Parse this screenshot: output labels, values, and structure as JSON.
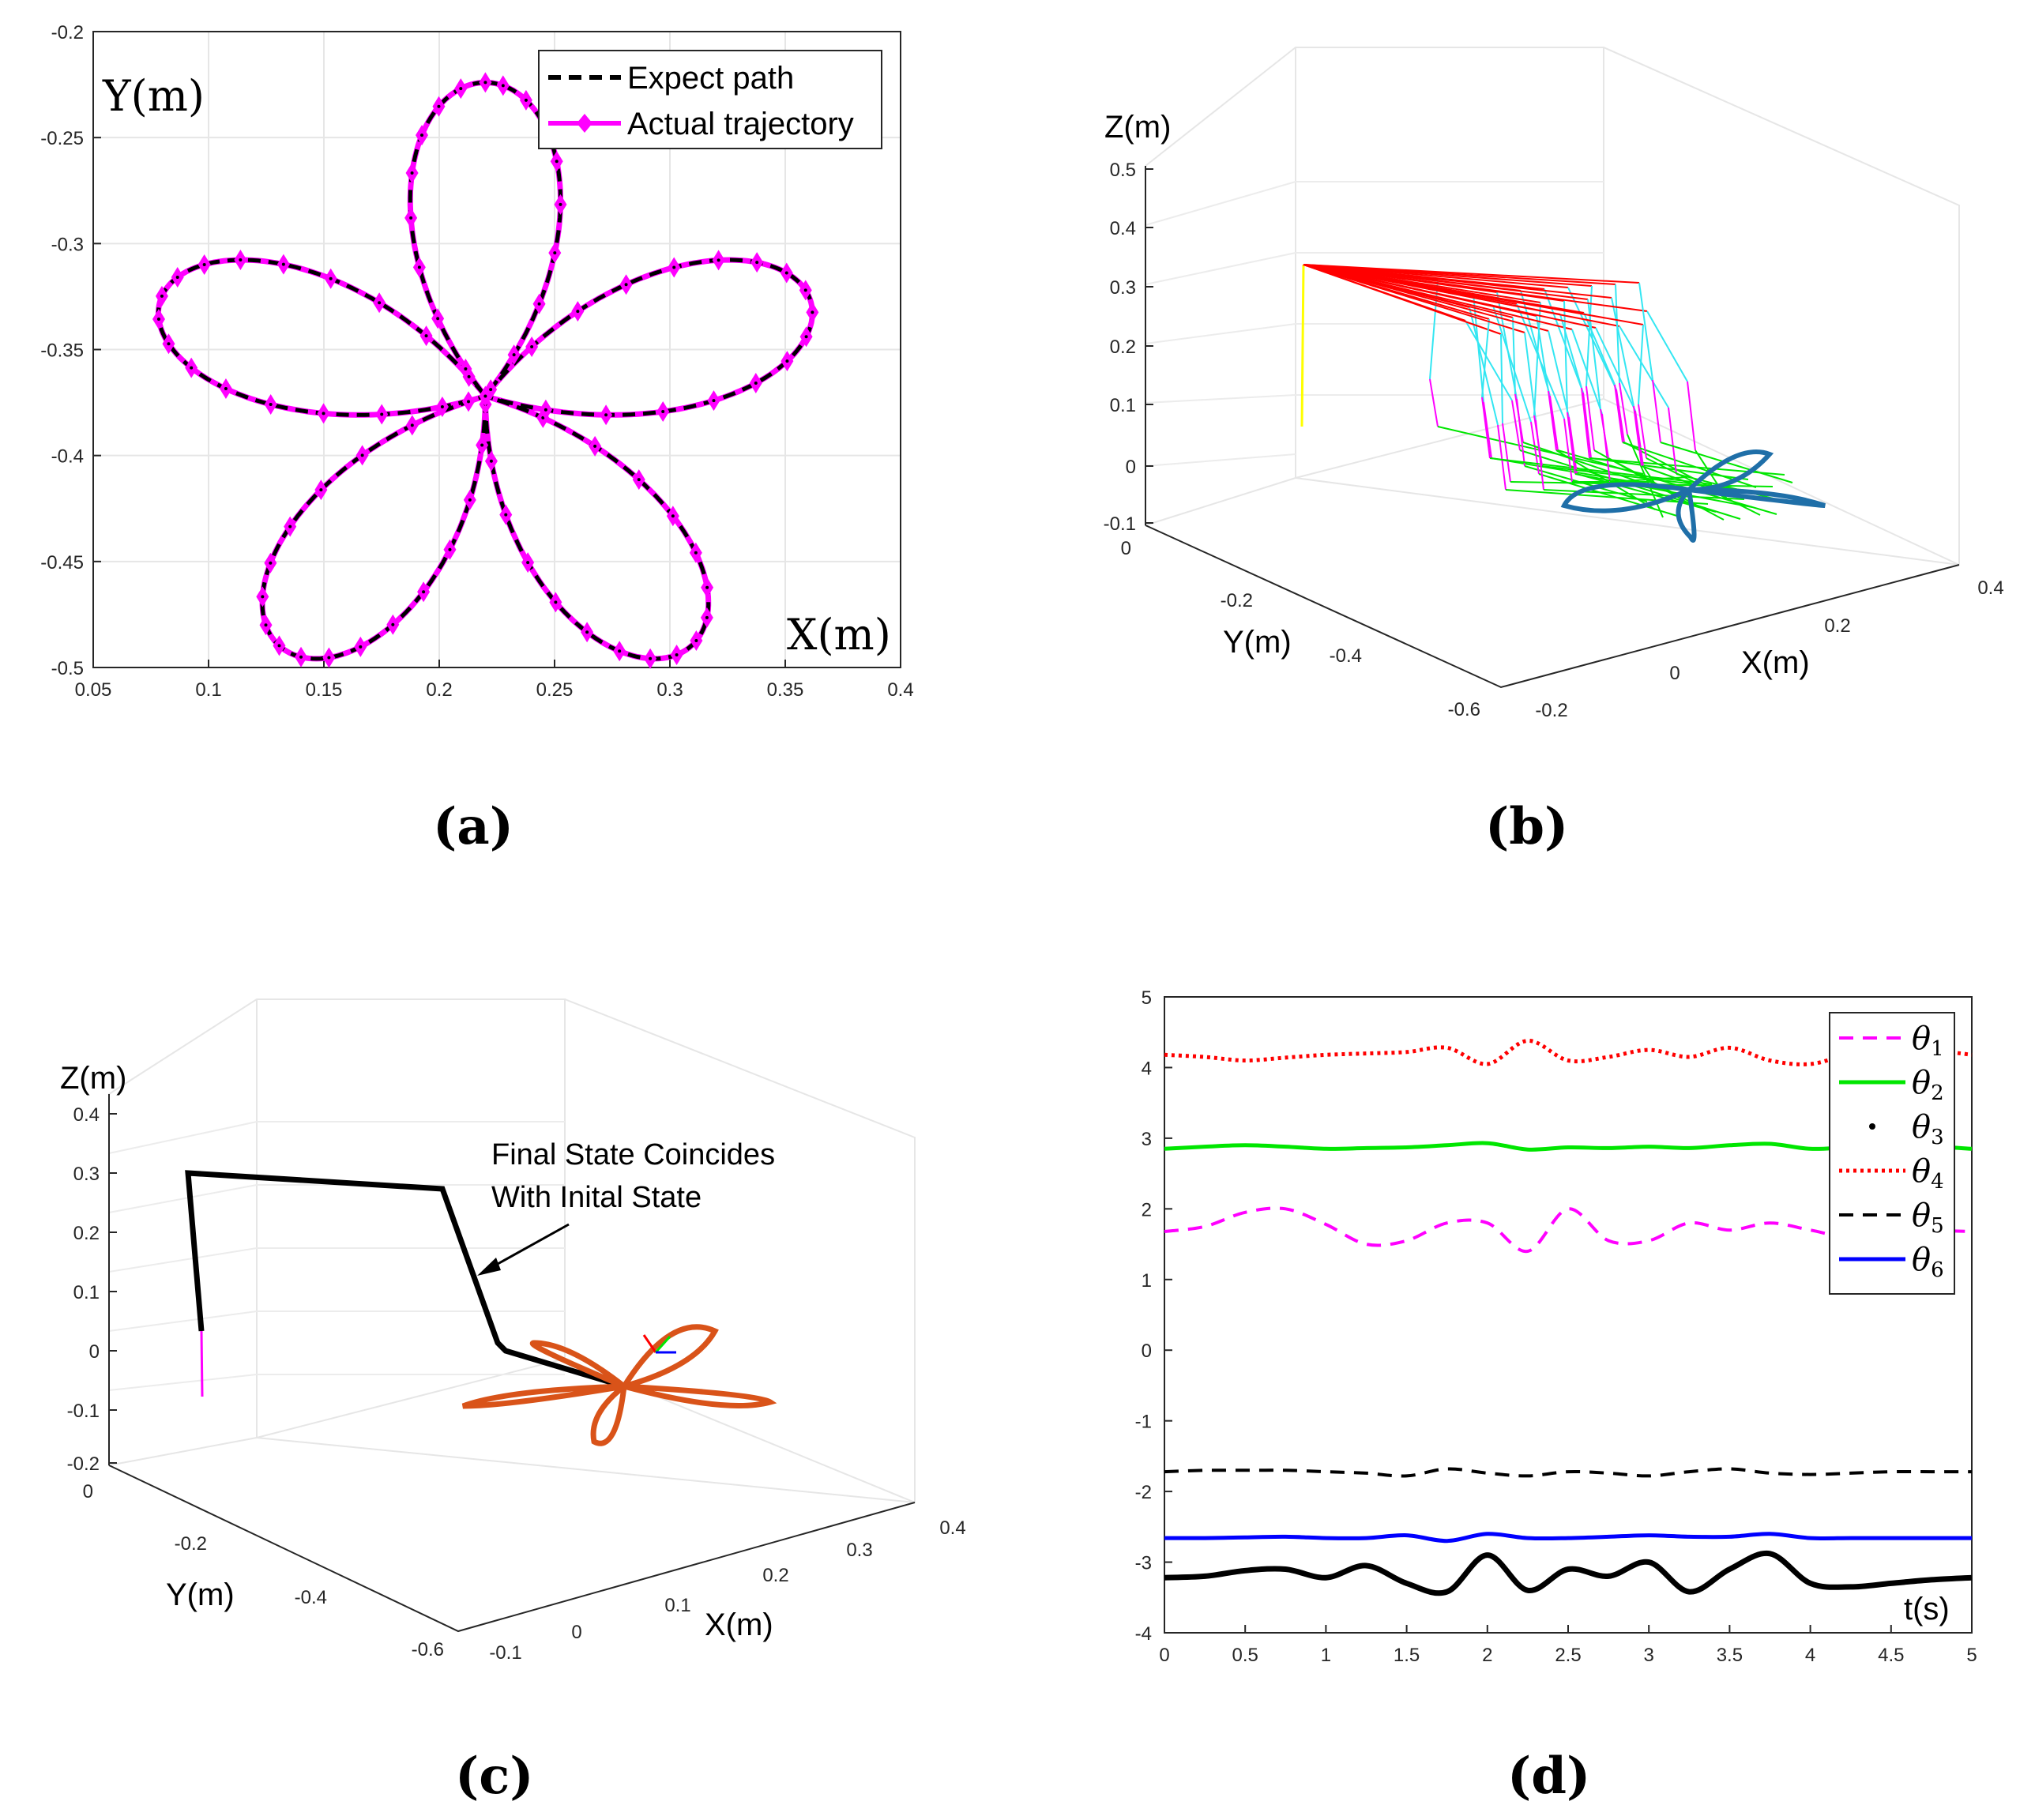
{
  "colors": {
    "magenta": "#ff00ff",
    "black": "#000000",
    "red": "#ff0000",
    "cyan": "#33e6f2",
    "green": "#00e600",
    "blue": "#0000ff",
    "steelblue": "#1f6fa8",
    "orange": "#d95319",
    "yellow": "#ffff00",
    "grid": "#e6e6e6"
  },
  "chart_data": [
    {
      "id": "a",
      "type": "line",
      "panel_label": "(a)",
      "xlabel": "X(m)",
      "ylabel": "Y(m)",
      "xlim": [
        0.05,
        0.4
      ],
      "ylim": [
        -0.5,
        -0.2
      ],
      "xticks": [
        "0.05",
        "0.1",
        "0.15",
        "0.2",
        "0.25",
        "0.3",
        "0.35",
        "0.4"
      ],
      "yticks": [
        "-0.2",
        "-0.25",
        "-0.3",
        "-0.35",
        "-0.4",
        "-0.45",
        "-0.5"
      ],
      "grid": true,
      "legend_position": "top-right",
      "curve": {
        "shape": "five-petal rose",
        "center": [
          0.22,
          -0.372
        ],
        "radius": 0.148,
        "petals": 5,
        "petal_angle_deg": 90
      },
      "series": [
        {
          "name": "Expect path",
          "style": "dashed",
          "color": "#000000"
        },
        {
          "name": "Actual trajectory",
          "style": "solid-diamond",
          "color": "#ff00ff"
        }
      ]
    },
    {
      "id": "b",
      "type": "line",
      "panel_label": "(b)",
      "xlabel": "X(m)",
      "ylabel": "Y(m)",
      "zlabel": "Z(m)",
      "xticks": [
        "-0.2",
        "0",
        "0.2",
        "0.4"
      ],
      "yticks": [
        "0",
        "-0.2",
        "-0.4",
        "-0.6"
      ],
      "zticks": [
        "0.5",
        "0.4",
        "0.3",
        "0.2",
        "0.1",
        "0",
        "-0.1"
      ],
      "grid": true
    },
    {
      "id": "c",
      "type": "line",
      "panel_label": "(c)",
      "xlabel": "X(m)",
      "ylabel": "Y(m)",
      "zlabel": "Z(m)",
      "xticks": [
        "-0.1",
        "0",
        "0.1",
        "0.2",
        "0.3",
        "0.4"
      ],
      "yticks": [
        "0",
        "-0.2",
        "-0.4",
        "-0.6"
      ],
      "zticks": [
        "0.4",
        "0.3",
        "0.2",
        "0.1",
        "0",
        "-0.1",
        "-0.2"
      ],
      "annotation_line1": "Final State Coincides",
      "annotation_line2": "With Inital State",
      "grid": true
    },
    {
      "id": "d",
      "type": "line",
      "panel_label": "(d)",
      "xlabel": "t(s)",
      "ylabel": "",
      "xlim": [
        0,
        5
      ],
      "ylim": [
        -4,
        5
      ],
      "xticks": [
        "0",
        "0.5",
        "1",
        "1.5",
        "2",
        "2.5",
        "3",
        "3.5",
        "4",
        "4.5",
        "5"
      ],
      "yticks": [
        "5",
        "4",
        "3",
        "2",
        "1",
        "0",
        "-1",
        "-2",
        "-3",
        "-4"
      ],
      "grid": false,
      "legend_position": "top-right",
      "x": [
        0,
        0.25,
        0.5,
        0.75,
        1.0,
        1.25,
        1.5,
        1.75,
        2.0,
        2.25,
        2.5,
        2.75,
        3.0,
        3.25,
        3.5,
        3.75,
        4.0,
        4.25,
        4.5,
        4.75,
        5.0
      ],
      "series": [
        {
          "name": "θ1",
          "style": "dashed",
          "color": "#ff00ff",
          "values": [
            1.68,
            1.75,
            1.95,
            2.0,
            1.78,
            1.5,
            1.55,
            1.8,
            1.8,
            1.4,
            2.0,
            1.55,
            1.55,
            1.8,
            1.7,
            1.8,
            1.7,
            1.6,
            1.75,
            1.7,
            1.68
          ]
        },
        {
          "name": "θ2",
          "style": "solid",
          "color": "#00e600",
          "values": [
            2.85,
            2.88,
            2.9,
            2.88,
            2.85,
            2.86,
            2.87,
            2.9,
            2.93,
            2.84,
            2.87,
            2.86,
            2.88,
            2.86,
            2.9,
            2.92,
            2.85,
            2.87,
            2.86,
            2.88,
            2.85
          ]
        },
        {
          "name": "θ3",
          "style": "solid-thick",
          "color": "#000000",
          "values": [
            -3.22,
            -3.2,
            -3.12,
            -3.1,
            -3.22,
            -3.05,
            -3.3,
            -3.42,
            -2.9,
            -3.4,
            -3.1,
            -3.2,
            -3.0,
            -3.42,
            -3.1,
            -2.88,
            -3.3,
            -3.35,
            -3.3,
            -3.25,
            -3.22
          ]
        },
        {
          "name": "θ4",
          "style": "dotted",
          "color": "#ff0000",
          "values": [
            4.18,
            4.15,
            4.1,
            4.14,
            4.18,
            4.2,
            4.22,
            4.28,
            4.05,
            4.38,
            4.1,
            4.15,
            4.25,
            4.15,
            4.28,
            4.1,
            4.05,
            4.2,
            4.3,
            4.25,
            4.18
          ]
        },
        {
          "name": "θ5",
          "style": "dashed",
          "color": "#000000",
          "values": [
            -1.72,
            -1.7,
            -1.7,
            -1.7,
            -1.72,
            -1.74,
            -1.78,
            -1.68,
            -1.74,
            -1.78,
            -1.72,
            -1.74,
            -1.78,
            -1.72,
            -1.68,
            -1.74,
            -1.76,
            -1.74,
            -1.72,
            -1.72,
            -1.72
          ]
        },
        {
          "name": "θ6",
          "style": "solid",
          "color": "#0000ff",
          "values": [
            -2.66,
            -2.66,
            -2.65,
            -2.64,
            -2.66,
            -2.66,
            -2.62,
            -2.7,
            -2.6,
            -2.66,
            -2.66,
            -2.64,
            -2.62,
            -2.64,
            -2.64,
            -2.6,
            -2.66,
            -2.66,
            -2.66,
            -2.66,
            -2.66
          ]
        }
      ]
    }
  ]
}
